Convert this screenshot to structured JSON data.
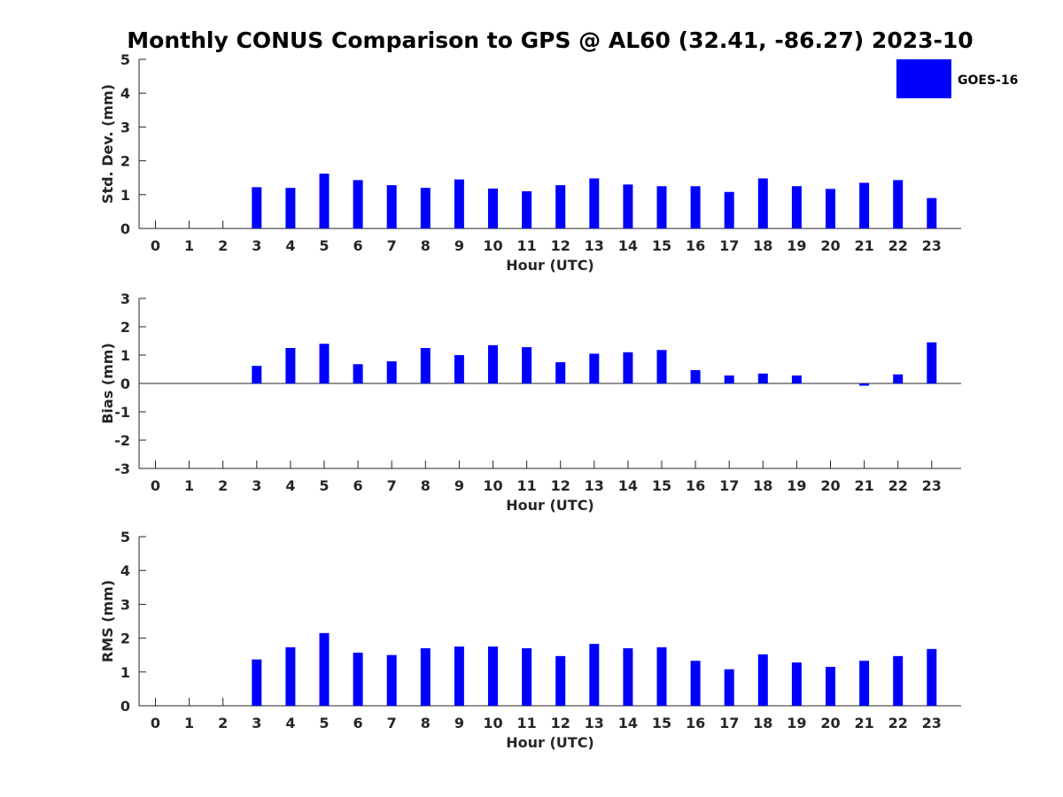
{
  "title": "Monthly CONUS Comparison to GPS @ AL60 (32.41, -86.27) 2023-10",
  "legend": {
    "label": "GOES-16",
    "color": "#0000ff"
  },
  "chart_data": [
    {
      "type": "bar",
      "ylabel": "Std. Dev. (mm)",
      "xlabel": "Hour (UTC)",
      "ylim": [
        0,
        5
      ],
      "yticks": [
        0,
        1,
        2,
        3,
        4,
        5
      ],
      "x": [
        0,
        1,
        2,
        3,
        4,
        5,
        6,
        7,
        8,
        9,
        10,
        11,
        12,
        13,
        14,
        15,
        16,
        17,
        18,
        19,
        20,
        21,
        22,
        23
      ],
      "series": [
        {
          "name": "GOES-16",
          "values": [
            null,
            null,
            null,
            1.22,
            1.2,
            1.62,
            1.43,
            1.28,
            1.2,
            1.45,
            1.18,
            1.1,
            1.28,
            1.48,
            1.3,
            1.25,
            1.25,
            1.08,
            1.48,
            1.25,
            1.17,
            1.35,
            1.43,
            0.9
          ]
        }
      ]
    },
    {
      "type": "bar",
      "ylabel": "Bias (mm)",
      "xlabel": "Hour (UTC)",
      "ylim": [
        -3,
        3
      ],
      "yticks": [
        -3,
        -2,
        -1,
        0,
        1,
        2,
        3
      ],
      "x": [
        0,
        1,
        2,
        3,
        4,
        5,
        6,
        7,
        8,
        9,
        10,
        11,
        12,
        13,
        14,
        15,
        16,
        17,
        18,
        19,
        20,
        21,
        22,
        23
      ],
      "series": [
        {
          "name": "GOES-16",
          "values": [
            null,
            null,
            null,
            0.62,
            1.25,
            1.4,
            0.68,
            0.78,
            1.25,
            1.0,
            1.35,
            1.28,
            0.75,
            1.05,
            1.1,
            1.18,
            0.47,
            0.28,
            0.35,
            0.28,
            null,
            -0.08,
            0.32,
            1.45
          ]
        }
      ]
    },
    {
      "type": "bar",
      "ylabel": "RMS (mm)",
      "xlabel": "Hour (UTC)",
      "ylim": [
        0,
        5
      ],
      "yticks": [
        0,
        1,
        2,
        3,
        4,
        5
      ],
      "x": [
        0,
        1,
        2,
        3,
        4,
        5,
        6,
        7,
        8,
        9,
        10,
        11,
        12,
        13,
        14,
        15,
        16,
        17,
        18,
        19,
        20,
        21,
        22,
        23
      ],
      "series": [
        {
          "name": "GOES-16",
          "values": [
            null,
            null,
            null,
            1.37,
            1.73,
            2.15,
            1.57,
            1.5,
            1.7,
            1.75,
            1.75,
            1.7,
            1.47,
            1.83,
            1.7,
            1.73,
            1.33,
            1.08,
            1.52,
            1.28,
            1.15,
            1.33,
            1.47,
            1.68
          ]
        }
      ]
    }
  ]
}
